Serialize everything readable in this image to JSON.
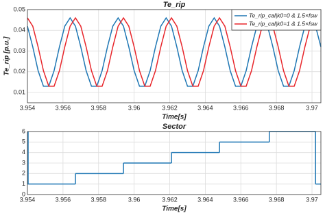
{
  "chart_data": [
    {
      "type": "line",
      "title": "Te_rip",
      "x_label": "Time[s]",
      "y_label": "Te_rip [p.u.]",
      "x": [
        3.954,
        3.9543,
        3.9546,
        3.9549,
        3.9552,
        3.9555,
        3.9558,
        3.9561,
        3.9564,
        3.9567,
        3.957,
        3.9573,
        3.9576,
        3.9579,
        3.9582,
        3.9585,
        3.9588,
        3.9591,
        3.9594,
        3.9597,
        3.96,
        3.9603,
        3.9606,
        3.9609,
        3.9612,
        3.9615,
        3.9618,
        3.9621,
        3.9624,
        3.9627,
        3.963,
        3.9633,
        3.9636,
        3.9639,
        3.9642,
        3.9645,
        3.9648,
        3.9651,
        3.9654,
        3.9657,
        3.966,
        3.9663,
        3.9666,
        3.9669,
        3.9672,
        3.9675,
        3.9678,
        3.9681,
        3.9684,
        3.9687,
        3.969,
        3.9693,
        3.9696,
        3.9699,
        3.9702,
        3.9705
      ],
      "series": [
        {
          "name": "Te_rip_cal|k0=0 & 1.5×fsw",
          "color": "#1f77b4",
          "values": [
            0.042,
            0.032,
            0.0205,
            0.013,
            0.013,
            0.0205,
            0.032,
            0.042,
            0.046,
            0.042,
            0.032,
            0.0205,
            0.013,
            0.013,
            0.0205,
            0.032,
            0.042,
            0.046,
            0.042,
            0.032,
            0.0205,
            0.013,
            0.013,
            0.0205,
            0.032,
            0.042,
            0.046,
            0.042,
            0.032,
            0.0205,
            0.013,
            0.013,
            0.0205,
            0.032,
            0.042,
            0.046,
            0.042,
            0.032,
            0.0205,
            0.013,
            0.013,
            0.0205,
            0.032,
            0.042,
            0.046,
            0.042,
            0.032,
            0.0205,
            0.013,
            0.013,
            0.0205,
            0.032,
            0.042,
            0.046,
            0.042,
            0.032
          ]
        },
        {
          "name": "Te_rip_cal|k0=1 & 1.5×fsw",
          "color": "#e8262b",
          "values": [
            0.046,
            0.042,
            0.032,
            0.0205,
            0.013,
            0.013,
            0.0205,
            0.032,
            0.042,
            0.046,
            0.042,
            0.032,
            0.0205,
            0.013,
            0.013,
            0.0205,
            0.032,
            0.042,
            0.046,
            0.042,
            0.032,
            0.0205,
            0.013,
            0.013,
            0.0205,
            0.032,
            0.042,
            0.046,
            0.042,
            0.032,
            0.0205,
            0.013,
            0.013,
            0.0205,
            0.032,
            0.042,
            0.046,
            0.042,
            0.032,
            0.0205,
            0.013,
            0.013,
            0.0205,
            0.032,
            0.042,
            0.046,
            0.042,
            0.032,
            0.0205,
            0.013,
            0.013,
            0.0205,
            0.032,
            0.042,
            0.046,
            0.042
          ]
        }
      ],
      "xlim": [
        3.954,
        3.9705
      ],
      "xticks": [
        3.954,
        3.956,
        3.958,
        3.96,
        3.962,
        3.964,
        3.966,
        3.968,
        3.97
      ],
      "ylim": [
        0.005,
        0.05
      ],
      "yticks": [
        0.01,
        0.02,
        0.03,
        0.04,
        0.05
      ],
      "grid": true,
      "legend": "top-right"
    },
    {
      "type": "step",
      "title": "Sector",
      "x_label": "Time[s]",
      "x": [
        3.954,
        3.9567,
        3.9594,
        3.9621,
        3.9648,
        3.9676,
        3.9702
      ],
      "series": [
        {
          "color": "#1f77b4",
          "values": [
            1,
            2,
            3,
            4,
            5,
            6,
            1
          ]
        }
      ],
      "xlim": [
        3.954,
        3.9705
      ],
      "xticks": [
        3.954,
        3.956,
        3.958,
        3.96,
        3.962,
        3.964,
        3.966,
        3.968,
        3.97
      ],
      "ylim": [
        0,
        6
      ],
      "yticks": [
        0,
        1,
        2,
        3,
        4,
        5,
        6
      ],
      "grid": true
    }
  ]
}
